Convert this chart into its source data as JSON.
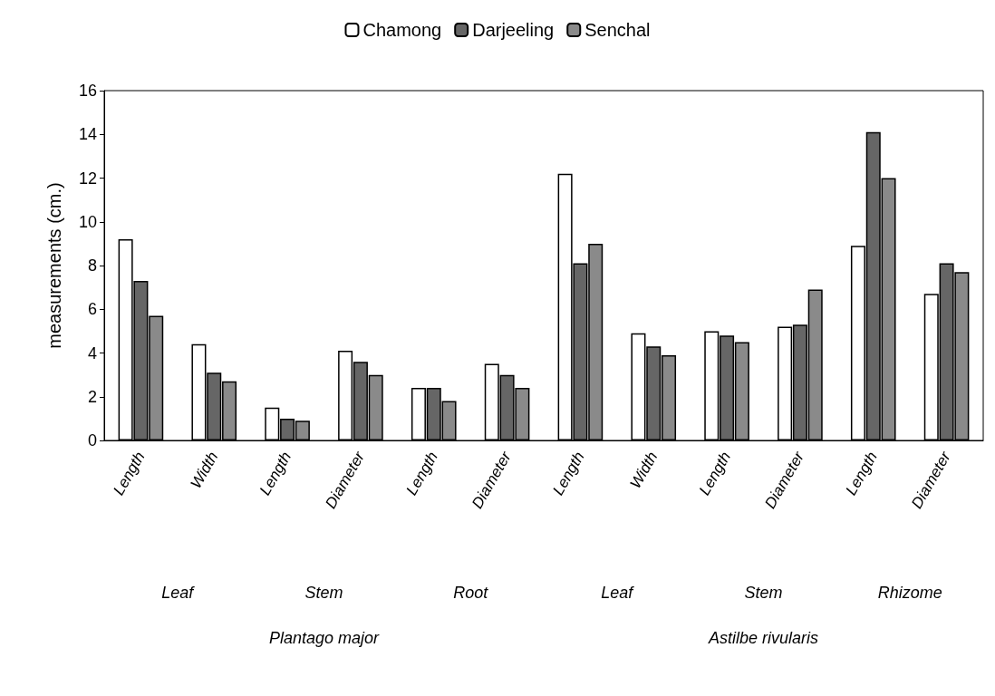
{
  "chart_data": {
    "type": "bar",
    "ylabel": "measurements (cm.)",
    "categories": [
      "Length",
      "Width",
      "Length",
      "Diameter",
      "Length",
      "Diameter",
      "Length",
      "Width",
      "Length",
      "Diameter",
      "Length",
      "Diameter"
    ],
    "series": [
      {
        "name": "Chamong",
        "color": "#ffffff",
        "values": [
          9.2,
          4.4,
          1.5,
          4.1,
          2.4,
          3.5,
          12.2,
          4.9,
          5.0,
          5.2,
          8.9,
          6.7
        ]
      },
      {
        "name": "Darjeeling",
        "color": "#666666",
        "values": [
          7.3,
          3.1,
          1.0,
          3.6,
          2.4,
          3.0,
          8.1,
          4.3,
          4.8,
          5.3,
          14.1,
          8.1
        ]
      },
      {
        "name": "Senchal",
        "color": "#8a8a8a",
        "values": [
          5.7,
          2.7,
          0.9,
          3.0,
          1.8,
          2.4,
          9.0,
          3.9,
          4.5,
          6.9,
          12.0,
          7.7
        ]
      }
    ],
    "annotations": [
      "Leaf",
      "Stem",
      "Root",
      "Leaf",
      "Stem",
      "Rhizome",
      "Plantago major",
      "Astilbe rivularis"
    ],
    "ylim": [
      0,
      16
    ],
    "yticks": [
      0,
      2,
      4,
      6,
      8,
      10,
      12,
      14,
      16
    ],
    "grid": false,
    "legend": "top"
  }
}
